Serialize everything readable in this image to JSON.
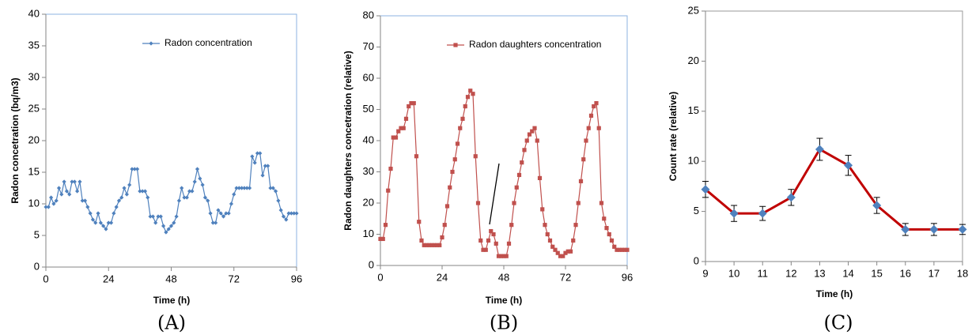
{
  "chart_data": [
    {
      "type": "line",
      "x_label": "Time (h)",
      "y_label": "Radon concetration (bq/m3)",
      "caption": "(A)",
      "xlim": [
        0,
        96
      ],
      "xticks": [
        0,
        24,
        48,
        72,
        96
      ],
      "ylim": [
        0,
        40
      ],
      "yticks": [
        0,
        5,
        10,
        15,
        20,
        25,
        30,
        35,
        40
      ],
      "legend": "upper right",
      "x": [
        0,
        1,
        2,
        3,
        4,
        5,
        6,
        7,
        8,
        9,
        10,
        11,
        12,
        13,
        14,
        15,
        16,
        17,
        18,
        19,
        20,
        21,
        22,
        23,
        24,
        25,
        26,
        27,
        28,
        29,
        30,
        31,
        32,
        33,
        34,
        35,
        36,
        37,
        38,
        39,
        40,
        41,
        42,
        43,
        44,
        45,
        46,
        47,
        48,
        49,
        50,
        51,
        52,
        53,
        54,
        55,
        56,
        57,
        58,
        59,
        60,
        61,
        62,
        63,
        64,
        65,
        66,
        67,
        68,
        69,
        70,
        71,
        72,
        73,
        74,
        75,
        76,
        77,
        78,
        79,
        80,
        81,
        82,
        83,
        84,
        85,
        86,
        87,
        88,
        89,
        90,
        91,
        92,
        93,
        94,
        95,
        96
      ],
      "series": [
        {
          "name": "Radon concentration",
          "color": "#4f81bd",
          "marker": "diamond",
          "values": [
            9.5,
            9.5,
            11,
            10,
            10.5,
            12.5,
            11.5,
            13.5,
            12,
            11.5,
            13.5,
            13.5,
            12,
            13.5,
            10.5,
            10.5,
            9.5,
            8.5,
            7.5,
            7,
            8.5,
            7,
            6.5,
            6,
            7,
            7,
            8.5,
            9.5,
            10.5,
            11,
            12.5,
            11.5,
            13,
            15.5,
            15.5,
            15.5,
            12,
            12,
            12,
            11,
            8,
            8,
            7,
            8,
            8,
            6.5,
            5.5,
            6,
            6.5,
            7,
            8,
            10.5,
            12.5,
            11,
            11,
            12,
            12,
            13.5,
            15.5,
            14,
            13,
            11,
            10.5,
            8.5,
            7,
            7,
            9,
            8.5,
            8,
            8.5,
            8.5,
            10,
            11.5,
            12.5,
            12.5,
            12.5,
            12.5,
            12.5,
            12.5,
            17.5,
            16.5,
            18,
            18,
            14.5,
            16,
            16,
            12.5,
            12.5,
            12,
            10.5,
            9,
            8,
            7.5,
            8.5,
            8.5,
            8.5,
            8.5
          ]
        }
      ]
    },
    {
      "type": "line",
      "x_label": "Time (h)",
      "y_label": "Radon daughters concetration (relative)",
      "caption": "(B)",
      "xlim": [
        0,
        96
      ],
      "xticks": [
        0,
        24,
        48,
        72,
        96
      ],
      "ylim": [
        0,
        80
      ],
      "yticks": [
        0,
        10,
        20,
        30,
        40,
        50,
        60,
        70,
        80
      ],
      "legend": "upper right",
      "x": [
        0,
        1,
        2,
        3,
        4,
        5,
        6,
        7,
        8,
        9,
        10,
        11,
        12,
        13,
        14,
        15,
        16,
        17,
        18,
        19,
        20,
        21,
        22,
        23,
        24,
        25,
        26,
        27,
        28,
        29,
        30,
        31,
        32,
        33,
        34,
        35,
        36,
        37,
        38,
        39,
        40,
        41,
        42,
        43,
        44,
        45,
        46,
        47,
        48,
        49,
        50,
        51,
        52,
        53,
        54,
        55,
        56,
        57,
        58,
        59,
        60,
        61,
        62,
        63,
        64,
        65,
        66,
        67,
        68,
        69,
        70,
        71,
        72,
        73,
        74,
        75,
        76,
        77,
        78,
        79,
        80,
        81,
        82,
        83,
        84,
        85,
        86,
        87,
        88,
        89,
        90,
        91,
        92,
        93,
        94,
        95,
        96
      ],
      "series": [
        {
          "name": "Radon daughters concentration",
          "color": "#c0504d",
          "marker": "square",
          "values": [
            8.5,
            8.5,
            13,
            24,
            31,
            41,
            41,
            43,
            44,
            44,
            47,
            51,
            52,
            52,
            35,
            14,
            8,
            6.5,
            6.5,
            6.5,
            6.5,
            6.5,
            6.5,
            6.5,
            9,
            13,
            19,
            25,
            30,
            34,
            39,
            44,
            47,
            51,
            54,
            56,
            55,
            35,
            20,
            8,
            5,
            5,
            8,
            11,
            10,
            7,
            3,
            3,
            3,
            3,
            7,
            13,
            20,
            25,
            29,
            33,
            37,
            40,
            42,
            43,
            44,
            40,
            28,
            18,
            13,
            10,
            8,
            6,
            5,
            4,
            3,
            3,
            4,
            4.5,
            4.5,
            8,
            13,
            20,
            27,
            34,
            40,
            44,
            48,
            51,
            52,
            44,
            20,
            15,
            12,
            10,
            8,
            6,
            5,
            5,
            5,
            5,
            5
          ]
        }
      ]
    },
    {
      "type": "line",
      "x_label": "Time (h)",
      "y_label": "Count rate (relative)",
      "caption": "(C)",
      "xlim": [
        9,
        18
      ],
      "xticks": [
        9,
        10,
        11,
        12,
        13,
        14,
        15,
        16,
        17,
        18
      ],
      "ylim": [
        0,
        25
      ],
      "yticks": [
        0,
        5,
        10,
        15,
        20,
        25
      ],
      "x": [
        9,
        10,
        11,
        12,
        13,
        14,
        15,
        16,
        17,
        18
      ],
      "series": [
        {
          "color": "#c00000",
          "marker": "diamond",
          "marker_color": "#4f81bd",
          "values": [
            7.2,
            4.8,
            4.8,
            6.4,
            11.2,
            9.6,
            5.6,
            3.2,
            3.2,
            3.2
          ],
          "errors": [
            0.8,
            0.8,
            0.7,
            0.8,
            1.1,
            1.0,
            0.8,
            0.6,
            0.6,
            0.5
          ]
        }
      ]
    }
  ]
}
